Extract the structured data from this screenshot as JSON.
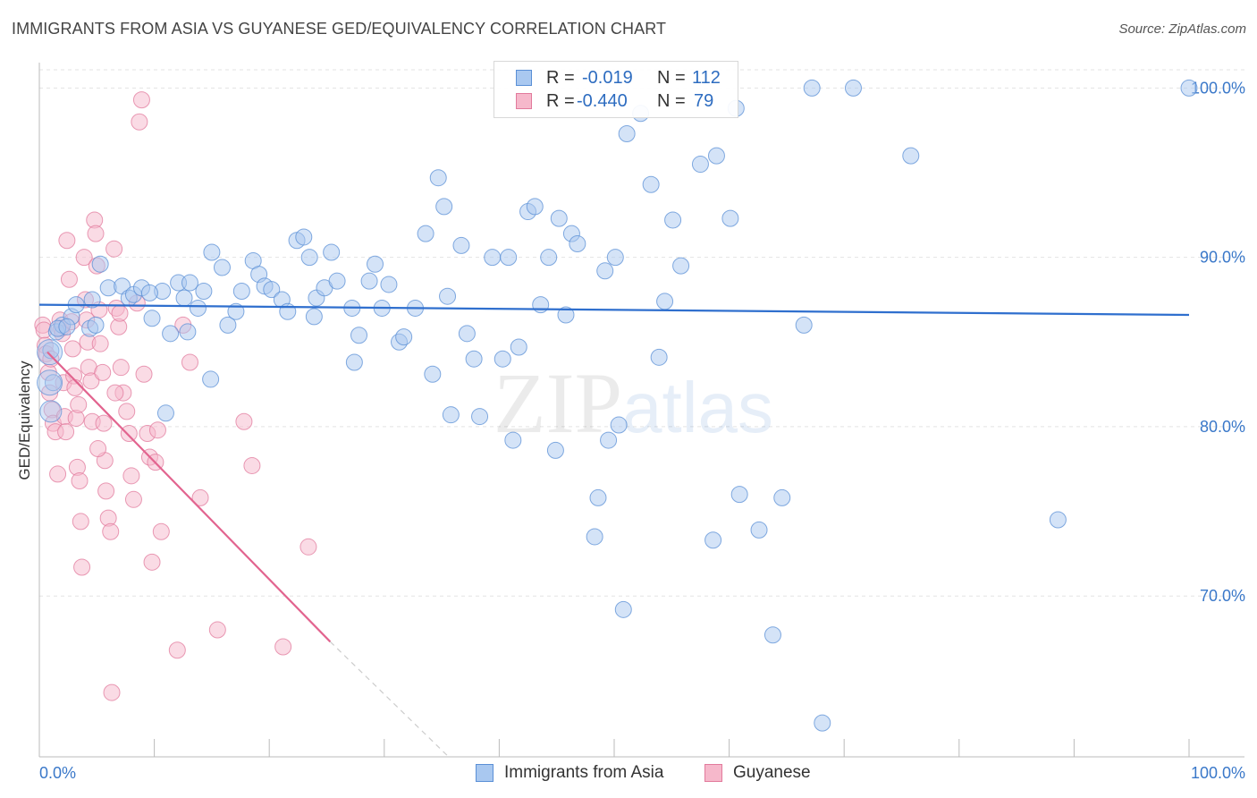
{
  "header": {
    "title": "IMMIGRANTS FROM ASIA VS GUYANESE GED/EQUIVALENCY CORRELATION CHART",
    "source": "Source: ZipAtlas.com"
  },
  "watermark": {
    "zip": "ZIP",
    "atlas": "atlas"
  },
  "legend": {
    "rows": [
      {
        "r_label": "R =",
        "r_value": "-0.019",
        "n_label": "N =",
        "n_value": "112"
      },
      {
        "r_label": "R =",
        "r_value": "-0.440",
        "n_label": "N =",
        "n_value": "79"
      }
    ]
  },
  "colors": {
    "asia_fill": "#a9c8f0",
    "asia_stroke": "#5a8fd6",
    "asia_line": "#2f6fce",
    "guy_fill": "#f6b8cb",
    "guy_stroke": "#e27a9c",
    "guy_line": "#e2648f",
    "axis_text": "#3a78c9",
    "grid": "#e3e3e3"
  },
  "chart_data": {
    "type": "scatter",
    "title": "IMMIGRANTS FROM ASIA VS GUYANESE GED/EQUIVALENCY CORRELATION CHART",
    "xlabel": "",
    "ylabel": "GED/Equivalency",
    "xlim": [
      0,
      100
    ],
    "ylim": [
      60.5,
      101.5
    ],
    "x_tick_labels": [
      "0.0%",
      "100.0%"
    ],
    "y_ticks": [
      70,
      80,
      90,
      100
    ],
    "y_tick_labels": [
      "70.0%",
      "80.0%",
      "90.0%",
      "100.0%"
    ],
    "legend_position": "bottom",
    "series": [
      {
        "name": "Immigrants from Asia",
        "R": -0.019,
        "N": 112,
        "trend": {
          "x": [
            0,
            100
          ],
          "y": [
            87.2,
            86.6
          ]
        },
        "points": [
          [
            1.0,
            84.5
          ],
          [
            1.2,
            82.6
          ],
          [
            1.5,
            85.6
          ],
          [
            2.0,
            86.0
          ],
          [
            2.8,
            86.5
          ],
          [
            3.2,
            87.2
          ],
          [
            4.4,
            85.8
          ],
          [
            4.9,
            86.0
          ],
          [
            5.3,
            89.6
          ],
          [
            6.0,
            88.2
          ],
          [
            7.2,
            88.3
          ],
          [
            7.8,
            87.6
          ],
          [
            8.2,
            87.8
          ],
          [
            8.9,
            88.2
          ],
          [
            9.8,
            86.4
          ],
          [
            10.7,
            88.0
          ],
          [
            11.4,
            85.5
          ],
          [
            12.1,
            88.5
          ],
          [
            12.6,
            87.6
          ],
          [
            13.1,
            88.5
          ],
          [
            13.8,
            87.0
          ],
          [
            14.3,
            88.0
          ],
          [
            15.0,
            90.3
          ],
          [
            15.9,
            89.4
          ],
          [
            16.4,
            86.0
          ],
          [
            17.1,
            86.8
          ],
          [
            17.6,
            88.0
          ],
          [
            18.6,
            89.8
          ],
          [
            19.1,
            89.0
          ],
          [
            19.6,
            88.3
          ],
          [
            20.2,
            88.1
          ],
          [
            21.1,
            87.5
          ],
          [
            21.6,
            86.8
          ],
          [
            22.4,
            91.0
          ],
          [
            23.0,
            91.2
          ],
          [
            23.5,
            90.0
          ],
          [
            24.1,
            87.6
          ],
          [
            24.8,
            88.2
          ],
          [
            25.4,
            90.3
          ],
          [
            25.9,
            88.6
          ],
          [
            27.2,
            87.0
          ],
          [
            27.8,
            85.4
          ],
          [
            28.7,
            88.6
          ],
          [
            29.2,
            89.6
          ],
          [
            29.8,
            87.0
          ],
          [
            30.4,
            88.4
          ],
          [
            31.3,
            85.0
          ],
          [
            31.7,
            85.3
          ],
          [
            32.7,
            87.0
          ],
          [
            33.6,
            91.4
          ],
          [
            34.2,
            83.1
          ],
          [
            34.7,
            94.7
          ],
          [
            35.2,
            93.0
          ],
          [
            35.8,
            80.7
          ],
          [
            36.7,
            90.7
          ],
          [
            37.2,
            85.5
          ],
          [
            37.8,
            84.0
          ],
          [
            38.3,
            80.6
          ],
          [
            39.4,
            90.0
          ],
          [
            40.3,
            84.0
          ],
          [
            40.8,
            90.0
          ],
          [
            41.2,
            79.2
          ],
          [
            42.5,
            92.7
          ],
          [
            43.1,
            93.0
          ],
          [
            43.6,
            87.2
          ],
          [
            44.3,
            90.0
          ],
          [
            45.2,
            92.3
          ],
          [
            45.8,
            86.6
          ],
          [
            46.3,
            91.4
          ],
          [
            46.8,
            90.8
          ],
          [
            48.3,
            73.5
          ],
          [
            48.6,
            75.8
          ],
          [
            49.2,
            89.2
          ],
          [
            49.5,
            79.2
          ],
          [
            50.1,
            90.0
          ],
          [
            50.4,
            80.1
          ],
          [
            50.8,
            69.2
          ],
          [
            51.1,
            97.3
          ],
          [
            52.3,
            98.5
          ],
          [
            53.2,
            94.3
          ],
          [
            53.9,
            84.1
          ],
          [
            54.4,
            87.4
          ],
          [
            55.1,
            92.2
          ],
          [
            55.8,
            89.5
          ],
          [
            57.5,
            95.5
          ],
          [
            58.9,
            96.0
          ],
          [
            58.6,
            73.3
          ],
          [
            60.1,
            92.3
          ],
          [
            60.6,
            98.8
          ],
          [
            60.9,
            76.0
          ],
          [
            62.6,
            73.9
          ],
          [
            63.8,
            67.7
          ],
          [
            64.6,
            75.8
          ],
          [
            66.5,
            86.0
          ],
          [
            67.2,
            100.0
          ],
          [
            68.1,
            62.5
          ],
          [
            70.8,
            100.0
          ],
          [
            75.8,
            96.0
          ],
          [
            88.6,
            74.5
          ],
          [
            100.0,
            100.0
          ],
          [
            1.6,
            85.8
          ],
          [
            4.6,
            87.5
          ],
          [
            9.6,
            87.9
          ],
          [
            12.9,
            85.6
          ],
          [
            14.9,
            82.8
          ],
          [
            23.9,
            86.5
          ],
          [
            27.4,
            83.8
          ],
          [
            35.5,
            87.7
          ],
          [
            41.7,
            84.7
          ],
          [
            44.9,
            78.6
          ],
          [
            11.0,
            80.8
          ],
          [
            2.4,
            85.9
          ]
        ]
      },
      {
        "name": "Guyanese",
        "R": -0.44,
        "N": 79,
        "trend": {
          "x": [
            0.7,
            25.3
          ],
          "y": [
            84.4,
            67.3
          ]
        },
        "trend_dashed": {
          "x": [
            25.3,
            35.6
          ],
          "y": [
            67.3,
            60.5
          ]
        },
        "points": [
          [
            0.3,
            86.0
          ],
          [
            0.4,
            85.7
          ],
          [
            0.5,
            84.8
          ],
          [
            0.6,
            84.3
          ],
          [
            0.8,
            83.2
          ],
          [
            0.9,
            82.0
          ],
          [
            1.1,
            81.0
          ],
          [
            1.2,
            80.2
          ],
          [
            1.4,
            79.7
          ],
          [
            1.6,
            77.2
          ],
          [
            1.8,
            86.3
          ],
          [
            1.9,
            85.8
          ],
          [
            2.1,
            82.6
          ],
          [
            2.2,
            80.6
          ],
          [
            2.3,
            79.7
          ],
          [
            2.4,
            91.0
          ],
          [
            2.6,
            88.7
          ],
          [
            2.8,
            86.2
          ],
          [
            2.9,
            84.6
          ],
          [
            3.0,
            83.0
          ],
          [
            3.1,
            82.3
          ],
          [
            3.2,
            80.5
          ],
          [
            3.3,
            77.6
          ],
          [
            3.5,
            76.8
          ],
          [
            3.6,
            74.4
          ],
          [
            3.7,
            71.7
          ],
          [
            3.9,
            90.0
          ],
          [
            4.0,
            87.5
          ],
          [
            4.1,
            86.3
          ],
          [
            4.2,
            85.0
          ],
          [
            4.3,
            83.5
          ],
          [
            4.5,
            82.7
          ],
          [
            4.6,
            80.3
          ],
          [
            4.8,
            92.2
          ],
          [
            4.9,
            91.4
          ],
          [
            5.0,
            89.5
          ],
          [
            5.2,
            86.9
          ],
          [
            5.3,
            84.9
          ],
          [
            5.5,
            83.2
          ],
          [
            5.6,
            80.2
          ],
          [
            5.7,
            78.0
          ],
          [
            5.8,
            76.2
          ],
          [
            6.0,
            74.6
          ],
          [
            6.2,
            73.8
          ],
          [
            6.3,
            64.3
          ],
          [
            6.5,
            90.5
          ],
          [
            6.7,
            87.0
          ],
          [
            6.9,
            85.9
          ],
          [
            7.1,
            83.5
          ],
          [
            7.3,
            82.0
          ],
          [
            7.6,
            80.9
          ],
          [
            7.8,
            79.6
          ],
          [
            8.0,
            77.1
          ],
          [
            8.2,
            75.7
          ],
          [
            8.5,
            87.3
          ],
          [
            8.7,
            98.0
          ],
          [
            8.9,
            99.3
          ],
          [
            9.1,
            83.1
          ],
          [
            9.4,
            79.6
          ],
          [
            9.6,
            78.2
          ],
          [
            9.8,
            72.0
          ],
          [
            10.1,
            77.9
          ],
          [
            10.3,
            79.8
          ],
          [
            10.6,
            73.8
          ],
          [
            12.0,
            66.8
          ],
          [
            12.5,
            86.0
          ],
          [
            13.1,
            83.8
          ],
          [
            14.0,
            75.8
          ],
          [
            15.5,
            68.0
          ],
          [
            17.8,
            80.3
          ],
          [
            18.5,
            77.7
          ],
          [
            21.2,
            67.0
          ],
          [
            23.4,
            72.9
          ],
          [
            1.0,
            84.0
          ],
          [
            2.0,
            85.5
          ],
          [
            3.4,
            81.3
          ],
          [
            5.1,
            78.7
          ],
          [
            6.6,
            82.0
          ],
          [
            7.0,
            86.7
          ]
        ]
      }
    ]
  },
  "bottom_legend": {
    "items": [
      "Immigrants from Asia",
      "Guyanese"
    ]
  }
}
